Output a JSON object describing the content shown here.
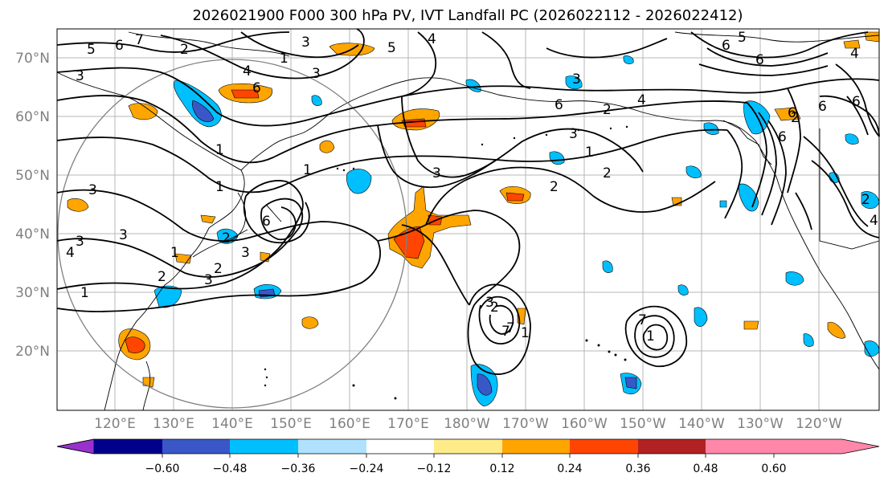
{
  "title": "2026021900 F000 300 hPa PV, IVT Landfall PC (2026022112 - 2026022412)",
  "map": {
    "lat_labels": [
      "70°N",
      "60°N",
      "50°N",
      "40°N",
      "30°N",
      "20°N"
    ],
    "lon_labels": [
      "120°E",
      "130°E",
      "140°E",
      "150°E",
      "160°E",
      "170°E",
      "180°W",
      "170°W",
      "160°W",
      "150°W",
      "140°W",
      "130°W",
      "120°W"
    ],
    "contour_labels": [
      "5",
      "6",
      "7",
      "3",
      "2",
      "1",
      "3",
      "4",
      "5",
      "1",
      "3",
      "4",
      "6",
      "6",
      "3",
      "1",
      "2",
      "1",
      "3",
      "2",
      "3",
      "4",
      "3",
      "1",
      "2",
      "3",
      "1",
      "2",
      "3",
      "6",
      "7",
      "1",
      "4",
      "3",
      "2",
      "1",
      "2",
      "2",
      "3",
      "3",
      "7",
      "7",
      "1",
      "6",
      "5",
      "4",
      "6",
      "6",
      "6",
      "6",
      "2",
      "2",
      "6",
      "4"
    ]
  },
  "colorbar": {
    "ticks": [
      "−0.60",
      "−0.48",
      "−0.36",
      "−0.24",
      "−0.12",
      "0.12",
      "0.24",
      "0.36",
      "0.48",
      "0.60"
    ],
    "colors": [
      "#9932cc",
      "#00008b",
      "#3a57c8",
      "#00bfff",
      "#b0e2ff",
      "#ffffff",
      "#ffeb8a",
      "#ffa500",
      "#ff4500",
      "#b22222",
      "#ff88aa"
    ]
  }
}
